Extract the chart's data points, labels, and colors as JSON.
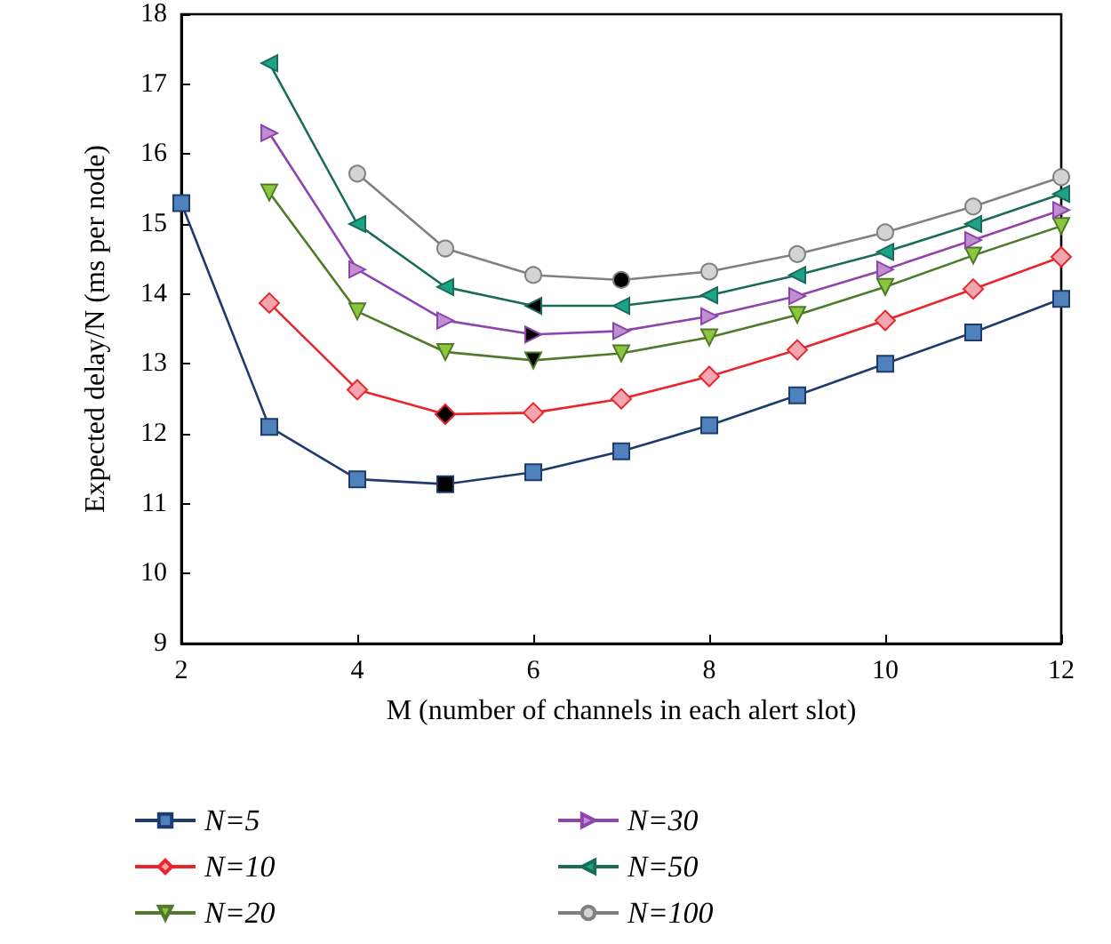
{
  "chart_data": {
    "type": "line",
    "xlabel": "M (number of channels in each alert slot)",
    "ylabel": "Expected delay/N (ms per node)",
    "x": [
      2,
      3,
      4,
      5,
      6,
      7,
      8,
      9,
      10,
      11,
      12
    ],
    "xlim": [
      2,
      12
    ],
    "xticks": [
      2,
      4,
      6,
      8,
      10,
      12
    ],
    "ylim": [
      9,
      18
    ],
    "yticks": [
      9,
      10,
      11,
      12,
      13,
      14,
      15,
      16,
      17,
      18
    ],
    "grid": false,
    "legend": "bottom",
    "series": [
      {
        "name": "N=5",
        "color": "#1f3b6e",
        "marker": "square",
        "colors": [
          "#4f81bd",
          "#4f81bd",
          "#4f81bd",
          "#000000",
          "#4f81bd",
          "#4f81bd",
          "#4f81bd",
          "#4f81bd",
          "#4f81bd",
          "#4f81bd",
          "#4f81bd"
        ],
        "values": [
          15.3,
          12.1,
          11.35,
          11.28,
          11.45,
          11.75,
          12.12,
          12.55,
          13.0,
          13.45,
          13.93
        ]
      },
      {
        "name": "N=10",
        "color": "#e8262b",
        "marker": "diamond",
        "colors": [
          "#f4a6b0",
          "#f4a6b0",
          "#f4a6b0",
          "#000000",
          "#f4a6b0",
          "#f4a6b0",
          "#f4a6b0",
          "#f4a6b0",
          "#f4a6b0",
          "#f4a6b0",
          "#f4a6b0"
        ],
        "values": [
          null,
          13.87,
          12.63,
          12.28,
          12.3,
          12.5,
          12.82,
          13.2,
          13.62,
          14.07,
          14.53
        ]
      },
      {
        "name": "N=20",
        "color": "#4e7a2a",
        "marker": "triangle-down",
        "colors": [
          "#8cc63f",
          "#8cc63f",
          "#8cc63f",
          "#8cc63f",
          "#000000",
          "#8cc63f",
          "#8cc63f",
          "#8cc63f",
          "#8cc63f",
          "#8cc63f",
          "#8cc63f"
        ],
        "values": [
          null,
          15.45,
          13.75,
          13.17,
          13.05,
          13.15,
          13.38,
          13.7,
          14.1,
          14.55,
          14.97
        ]
      },
      {
        "name": "N=30",
        "color": "#8e44ad",
        "marker": "triangle-right",
        "colors": [
          "#c08fd0",
          "#c08fd0",
          "#c08fd0",
          "#c08fd0",
          "#000000",
          "#c08fd0",
          "#c08fd0",
          "#c08fd0",
          "#c08fd0",
          "#c08fd0",
          "#c08fd0"
        ],
        "values": [
          null,
          16.3,
          14.35,
          13.62,
          13.42,
          13.47,
          13.68,
          13.97,
          14.35,
          14.77,
          15.2
        ]
      },
      {
        "name": "N=50",
        "color": "#1b6b5a",
        "marker": "triangle-left",
        "colors": [
          "#1aa385",
          "#1aa385",
          "#1aa385",
          "#1aa385",
          "#000000",
          "#1aa385",
          "#1aa385",
          "#1aa385",
          "#1aa385",
          "#1aa385",
          "#1aa385"
        ],
        "values": [
          null,
          17.3,
          15.0,
          14.1,
          13.83,
          13.83,
          13.98,
          14.27,
          14.6,
          15.0,
          15.43
        ]
      },
      {
        "name": "N=100",
        "color": "#808080",
        "marker": "circle",
        "colors": [
          "#d3d3d3",
          "#d3d3d3",
          "#d3d3d3",
          "#d3d3d3",
          "#d3d3d3",
          "#000000",
          "#d3d3d3",
          "#d3d3d3",
          "#d3d3d3",
          "#d3d3d3",
          "#d3d3d3"
        ],
        "values": [
          null,
          null,
          15.72,
          14.65,
          14.27,
          14.2,
          14.32,
          14.57,
          14.88,
          15.25,
          15.67
        ]
      }
    ]
  }
}
